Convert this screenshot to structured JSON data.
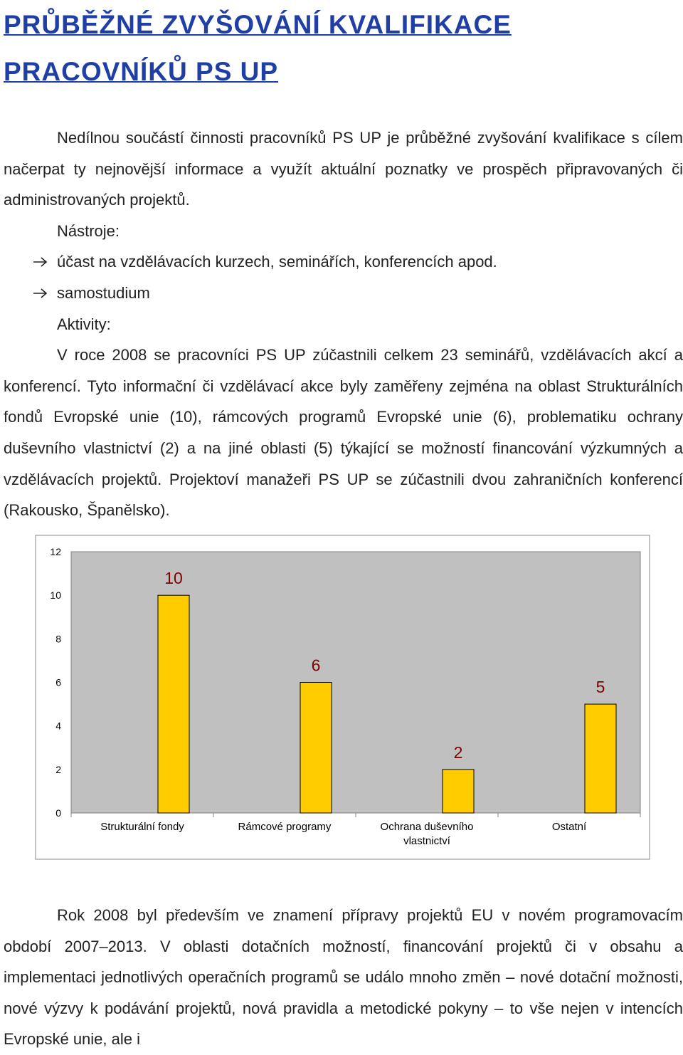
{
  "title": [
    "PRŮBĚŽNÉ ZVYŠOVÁNÍ KVALIFIKACE",
    "PRACOVNÍKŮ PS UP"
  ],
  "paragraphs": [
    "Nedílnou součástí činnosti pracovníků PS UP je průběžné zvyšování kvalifikace s cílem načerpat ty nejnovější informace a využít aktuální poznatky ve prospěch připravovaných či administrovaných projektů.",
    "Nástroje:",
    "Aktivity:",
    "V roce 2008 se pracovníci PS UP zúčastnili celkem 23 seminářů, vzdělávacích akcí a konferencí. Tyto informační či vzdělávací akce byly zaměřeny zejména na oblast Strukturálních fondů Evropské unie (10), rámcových programů Evropské unie (6), problematiku ochrany duševního vlastnictví (2) a na jiné oblasti (5) týkající se možností financování výzkumných a vzdělávacích projektů. Projektoví manažeři PS UP se zúčastnili dvou zahraničních konferencí (Rakousko, Španělsko).",
    "Rok 2008 byl především ve znamení přípravy projektů EU v novém programovacím období 2007–2013. V oblasti dotačních možností, financování projektů či v obsahu a implementaci jednotlivých operačních programů se událo mnoho změn – nové dotační možnosti, nové výzvy k podávání projektů, nová pravidla a metodické pokyny – to vše nejen v intencích Evropské unie, ale i"
  ],
  "bullets": [
    "účast na vzdělávacích kurzech, seminářích, konferencích apod.",
    "samostudium"
  ],
  "chart_data": {
    "type": "bar",
    "categories": [
      "Strukturální fondy",
      "Rámcové programy",
      "Ochrana duševního vlastnictví",
      "Ostatní"
    ],
    "values": [
      10,
      6,
      2,
      5
    ],
    "color": "#ffcc00",
    "label_color": "#800000",
    "plot_color": "#c0c0c0",
    "ylim": [
      0,
      12
    ],
    "yticks": [
      0,
      2,
      4,
      6,
      8,
      10,
      12
    ],
    "grid": false
  }
}
